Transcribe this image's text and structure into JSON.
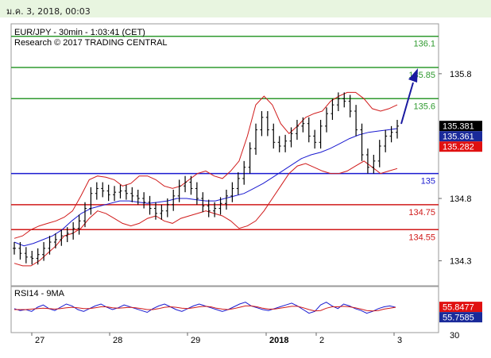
{
  "date_bar": {
    "text": "ม.ค. 3, 2018, 00:03"
  },
  "chart_data": [
    {
      "type": "candlestick",
      "title": "EUR/JPY - 30min - 1:03:41 (CET)",
      "subtitle": "Research © 2017 TRADING CENTRAL",
      "ylim": [
        134.1,
        136.2
      ],
      "y_ticks": [
        "135.8",
        "134.8",
        "134.3"
      ],
      "x_ticks": [
        "27",
        "28",
        "29",
        "2018",
        "2",
        "3"
      ],
      "levels": [
        {
          "value": 136.1,
          "label": "136.1",
          "color": "#2f9a2f",
          "kind": "resistance"
        },
        {
          "value": 135.85,
          "label": "135.85",
          "color": "#2f9a2f",
          "kind": "resistance"
        },
        {
          "value": 135.6,
          "label": "135.6",
          "color": "#2f9a2f",
          "kind": "resistance"
        },
        {
          "value": 135.0,
          "label": "135",
          "color": "#1a1ad0",
          "kind": "pivot"
        },
        {
          "value": 134.75,
          "label": "134.75",
          "color": "#d01a1a",
          "kind": "support"
        },
        {
          "value": 134.55,
          "label": "134.55",
          "color": "#d01a1a",
          "kind": "support"
        }
      ],
      "tags": [
        {
          "value": 135.381,
          "label": "135.381",
          "color": "#000000"
        },
        {
          "value": 135.361,
          "label": "135.361",
          "color": "#1a2a9a"
        },
        {
          "value": 135.282,
          "label": "135.282",
          "color": "#e01010"
        }
      ],
      "series": [
        {
          "name": "Close",
          "color": "#000000",
          "values": [
            134.4,
            134.36,
            134.33,
            134.32,
            134.35,
            134.4,
            134.45,
            134.47,
            134.5,
            134.52,
            134.56,
            134.62,
            134.72,
            134.84,
            134.88,
            134.86,
            134.83,
            134.85,
            134.86,
            134.84,
            134.82,
            134.8,
            134.77,
            134.72,
            134.68,
            134.7,
            134.75,
            134.82,
            134.9,
            134.93,
            134.88,
            134.8,
            134.74,
            134.7,
            134.72,
            134.76,
            134.82,
            134.88,
            134.96,
            135.05,
            135.2,
            135.35,
            135.45,
            135.35,
            135.25,
            135.22,
            135.26,
            135.32,
            135.38,
            135.4,
            135.3,
            135.25,
            135.38,
            135.48,
            135.55,
            135.6,
            135.58,
            135.5,
            135.35,
            135.15,
            135.05,
            135.1,
            135.22,
            135.3,
            135.33,
            135.38
          ]
        },
        {
          "name": "Bollinger Band",
          "color": "#d01a1a",
          "values": [
            134.48,
            134.5,
            134.55,
            134.58,
            134.6,
            134.62,
            134.65,
            134.7,
            134.82,
            134.95,
            134.98,
            134.97,
            134.95,
            134.9,
            134.92,
            134.98,
            134.98,
            134.95,
            134.9,
            134.88,
            134.9,
            134.95,
            135.0,
            135.02,
            134.98,
            134.96,
            135.02,
            135.1,
            135.3,
            135.55,
            135.62,
            135.55,
            135.4,
            135.32,
            135.38,
            135.45,
            135.48,
            135.5,
            135.58,
            135.62,
            135.65,
            135.65,
            135.6,
            135.52,
            135.5,
            135.52,
            135.55
          ]
        },
        {
          "name": "Bollinger Band",
          "color": "#d01a1a",
          "values": [
            134.28,
            134.26,
            134.26,
            134.3,
            134.36,
            134.42,
            134.5,
            134.52,
            134.56,
            134.64,
            134.7,
            134.68,
            134.64,
            134.6,
            134.58,
            134.6,
            134.64,
            134.66,
            134.62,
            134.6,
            134.64,
            134.66,
            134.68,
            134.7,
            134.68,
            134.66,
            134.62,
            134.56,
            134.58,
            134.62,
            134.7,
            134.8,
            134.9,
            135.0,
            135.06,
            135.08,
            135.05,
            135.02,
            135.0,
            135.0,
            135.02,
            135.06,
            135.1,
            135.05,
            135.0,
            135.02,
            135.04
          ]
        },
        {
          "name": "Moving Average",
          "color": "#1a1ad0",
          "values": [
            134.45,
            134.42,
            134.44,
            134.47,
            134.5,
            134.55,
            134.62,
            134.68,
            134.72,
            134.74,
            134.76,
            134.78,
            134.78,
            134.77,
            134.76,
            134.77,
            134.78,
            134.8,
            134.8,
            134.79,
            134.78,
            134.78,
            134.8,
            134.82,
            134.84,
            134.88,
            134.92,
            134.97,
            135.02,
            135.07,
            135.12,
            135.15,
            135.17,
            135.2,
            135.24,
            135.28,
            135.31,
            135.33,
            135.34,
            135.35,
            135.36
          ]
        }
      ]
    },
    {
      "type": "line",
      "title": "RSI14 - 9MA",
      "ylim": [
        0,
        100
      ],
      "y_ticks": [
        "30"
      ],
      "x_ticks": [
        "27",
        "28",
        "29",
        "2018",
        "2",
        "3"
      ],
      "tags": [
        {
          "value": 55.8477,
          "label": "55.8477",
          "color": "#e01010"
        },
        {
          "value": 55.7585,
          "label": "55.7585",
          "color": "#1a2a9a"
        }
      ],
      "series": [
        {
          "name": "RSI14",
          "color": "#1a1ad0",
          "values": [
            52,
            48,
            50,
            46,
            55,
            60,
            52,
            48,
            55,
            62,
            58,
            50,
            46,
            52,
            58,
            62,
            55,
            50,
            54,
            60,
            56,
            52,
            48,
            44,
            52,
            58,
            62,
            56,
            50,
            46,
            52,
            58,
            62,
            58,
            54,
            50,
            46,
            50,
            56,
            62,
            66,
            58,
            54,
            50,
            48,
            52,
            56,
            60,
            64,
            58,
            50,
            42,
            46,
            60,
            66,
            58,
            52,
            62,
            58,
            52,
            48,
            42,
            46,
            52,
            56,
            58,
            55
          ]
        },
        {
          "name": "9MA",
          "color": "#d01a1a",
          "values": [
            50,
            50,
            50,
            51,
            52,
            53,
            52,
            51,
            52,
            54,
            55,
            54,
            52,
            52,
            54,
            56,
            56,
            54,
            53,
            54,
            55,
            54,
            52,
            50,
            50,
            52,
            55,
            56,
            55,
            53,
            52,
            54,
            56,
            57,
            56,
            53,
            51,
            50,
            52,
            55,
            58,
            58,
            56,
            53,
            51,
            51,
            53,
            55,
            57,
            57,
            54,
            50,
            47,
            48,
            53,
            56,
            56,
            57,
            56,
            54,
            51,
            48,
            47,
            48,
            51,
            53,
            55
          ]
        }
      ]
    }
  ]
}
